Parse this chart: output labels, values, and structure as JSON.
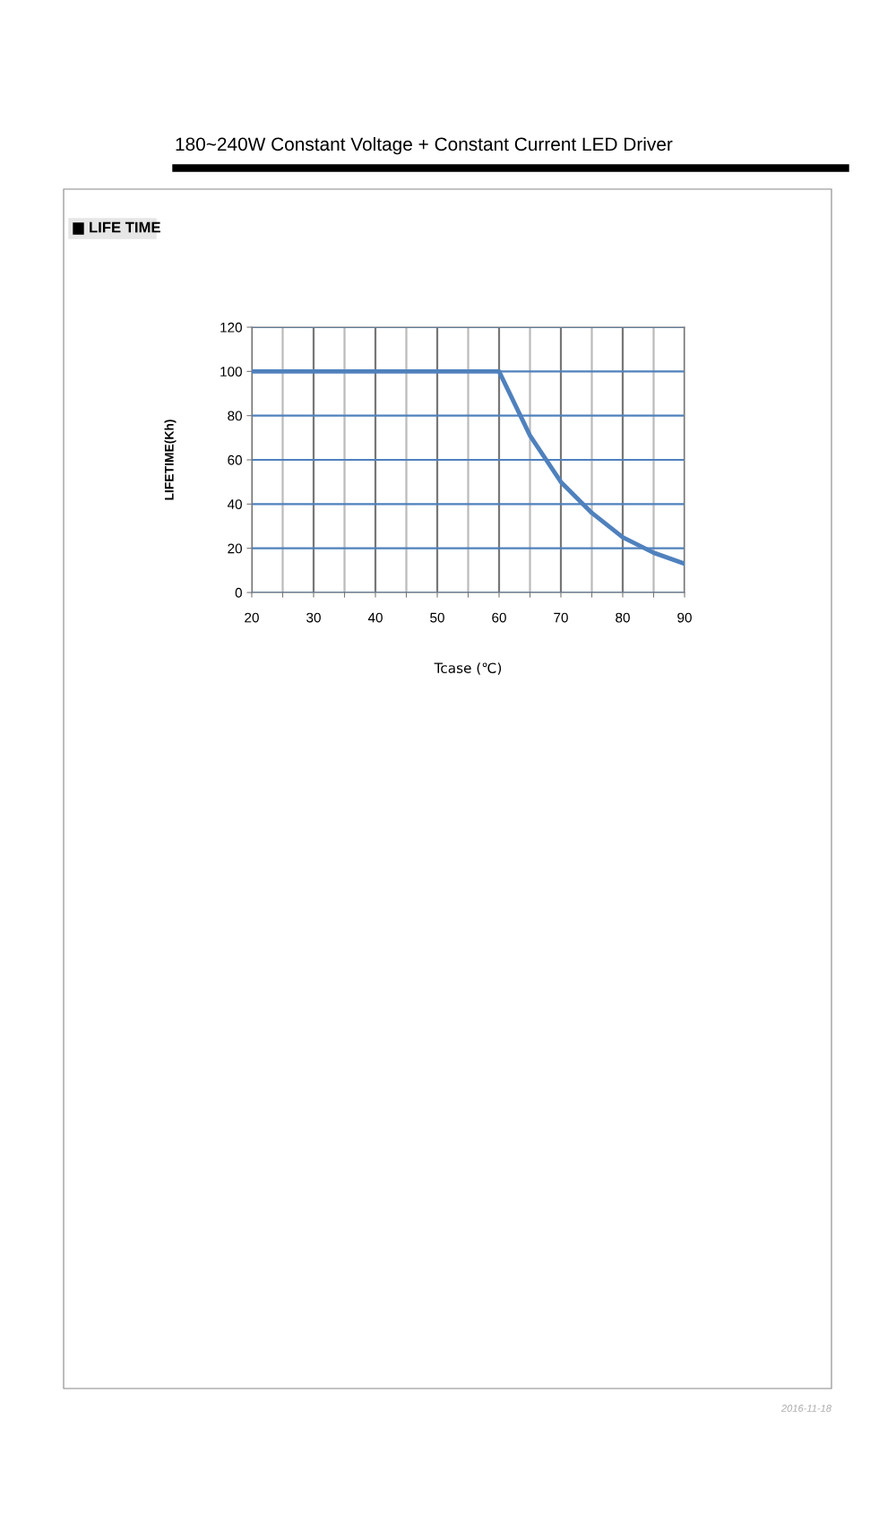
{
  "chart_data": {
    "type": "line",
    "title": "180~240W Constant Voltage + Constant Current LED Driver",
    "subtitle": "LIFE TIME",
    "xlabel": "Tcase (℃)",
    "ylabel": "LIFETIME(Kh)",
    "x": [
      20,
      60,
      65,
      70,
      75,
      80,
      85,
      90
    ],
    "series": [
      {
        "color": "#4f81bd",
        "values": [
          100,
          100,
          71,
          50,
          36,
          25,
          18,
          13
        ]
      }
    ],
    "xlim": [
      20,
      90
    ],
    "ylim": [
      0,
      120
    ],
    "xticks": [
      20,
      {
        "value": 25,
        "label": null
      },
      30,
      {
        "value": 35,
        "label": null
      },
      40,
      {
        "value": 45,
        "label": null
      },
      50,
      {
        "value": 55,
        "label": null
      },
      60,
      {
        "value": 65,
        "label": null
      },
      70,
      {
        "value": 75,
        "label": null
      },
      80,
      {
        "value": 85,
        "label": null
      },
      90
    ],
    "yticks": [
      0,
      20,
      40,
      60,
      80,
      100,
      120
    ],
    "grid": true,
    "legend": false,
    "marker": "none",
    "line_style": "solid",
    "annotations": [
      "2016-11-18"
    ]
  }
}
